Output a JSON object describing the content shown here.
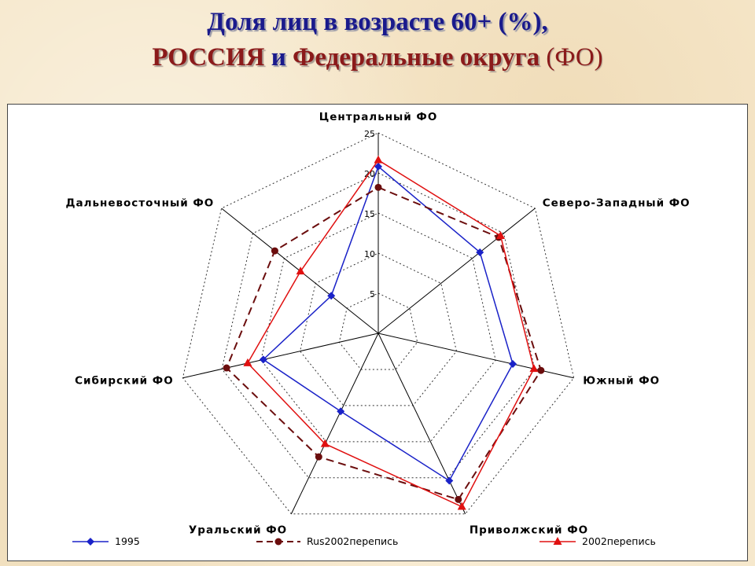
{
  "title": {
    "line1": "Доля лиц в возрасте 60+ (%),",
    "line2_part1": "РОССИЯ",
    "line2_part2": " и ",
    "line2_part3": "Федеральные округа",
    "line2_part4": " (ФО)"
  },
  "colors": {
    "series_1995": "#1a22c8",
    "series_rus2002": "#6b0d0d",
    "series_2002": "#e01010"
  },
  "chart_data": {
    "type": "radar",
    "categories": [
      "Центральный ФО",
      "Северо-Западный ФО",
      "Южный ФО",
      "Приволжский ФО",
      "Уральский ФО",
      "Сибирский ФО",
      "Дальневосточный ФО"
    ],
    "r_ticks": [
      "5",
      "10",
      "15",
      "20",
      "25"
    ],
    "rlim": [
      0,
      25
    ],
    "series": [
      {
        "name": "1995",
        "marker": "diamond",
        "line": "solid",
        "values": [
          20.8,
          16.2,
          17.2,
          20.4,
          10.8,
          14.7,
          7.5
        ]
      },
      {
        "name": "Rus2002перепись",
        "marker": "circle",
        "line": "dashed",
        "values": [
          18.2,
          19.2,
          20.8,
          23.0,
          17.1,
          19.4,
          16.5
        ]
      },
      {
        "name": "2002перепись",
        "marker": "triangle",
        "line": "solid",
        "values": [
          21.6,
          19.5,
          19.9,
          24.0,
          15.3,
          16.7,
          12.4
        ]
      }
    ],
    "grid": true,
    "legend_position": "bottom"
  }
}
